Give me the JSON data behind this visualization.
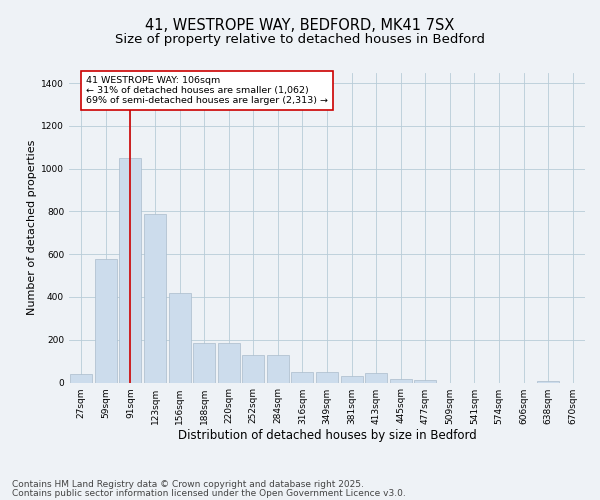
{
  "title": "41, WESTROPE WAY, BEDFORD, MK41 7SX",
  "subtitle": "Size of property relative to detached houses in Bedford",
  "xlabel": "Distribution of detached houses by size in Bedford",
  "ylabel": "Number of detached properties",
  "bin_labels": [
    "27sqm",
    "59sqm",
    "91sqm",
    "123sqm",
    "156sqm",
    "188sqm",
    "220sqm",
    "252sqm",
    "284sqm",
    "316sqm",
    "349sqm",
    "381sqm",
    "413sqm",
    "445sqm",
    "477sqm",
    "509sqm",
    "541sqm",
    "574sqm",
    "606sqm",
    "638sqm",
    "670sqm"
  ],
  "bar_heights": [
    40,
    580,
    1050,
    790,
    420,
    185,
    185,
    130,
    130,
    50,
    50,
    30,
    45,
    15,
    10,
    0,
    0,
    0,
    0,
    5,
    0
  ],
  "bar_color": "#ccdcec",
  "bar_edge_color": "#aabccc",
  "grid_color": "#b8ccd8",
  "vline_x": 2,
  "vline_color": "#cc0000",
  "annotation_text": "41 WESTROPE WAY: 106sqm\n← 31% of detached houses are smaller (1,062)\n69% of semi-detached houses are larger (2,313) →",
  "annotation_box_color": "#cc0000",
  "ylim": [
    0,
    1450
  ],
  "yticks": [
    0,
    200,
    400,
    600,
    800,
    1000,
    1200,
    1400
  ],
  "footer_line1": "Contains HM Land Registry data © Crown copyright and database right 2025.",
  "footer_line2": "Contains public sector information licensed under the Open Government Licence v3.0.",
  "background_color": "#eef2f6",
  "plot_background_color": "#eef2f6",
  "title_fontsize": 10.5,
  "subtitle_fontsize": 9.5,
  "ylabel_fontsize": 8,
  "xlabel_fontsize": 8.5,
  "tick_fontsize": 6.5,
  "annotation_fontsize": 6.8,
  "footer_fontsize": 6.5
}
